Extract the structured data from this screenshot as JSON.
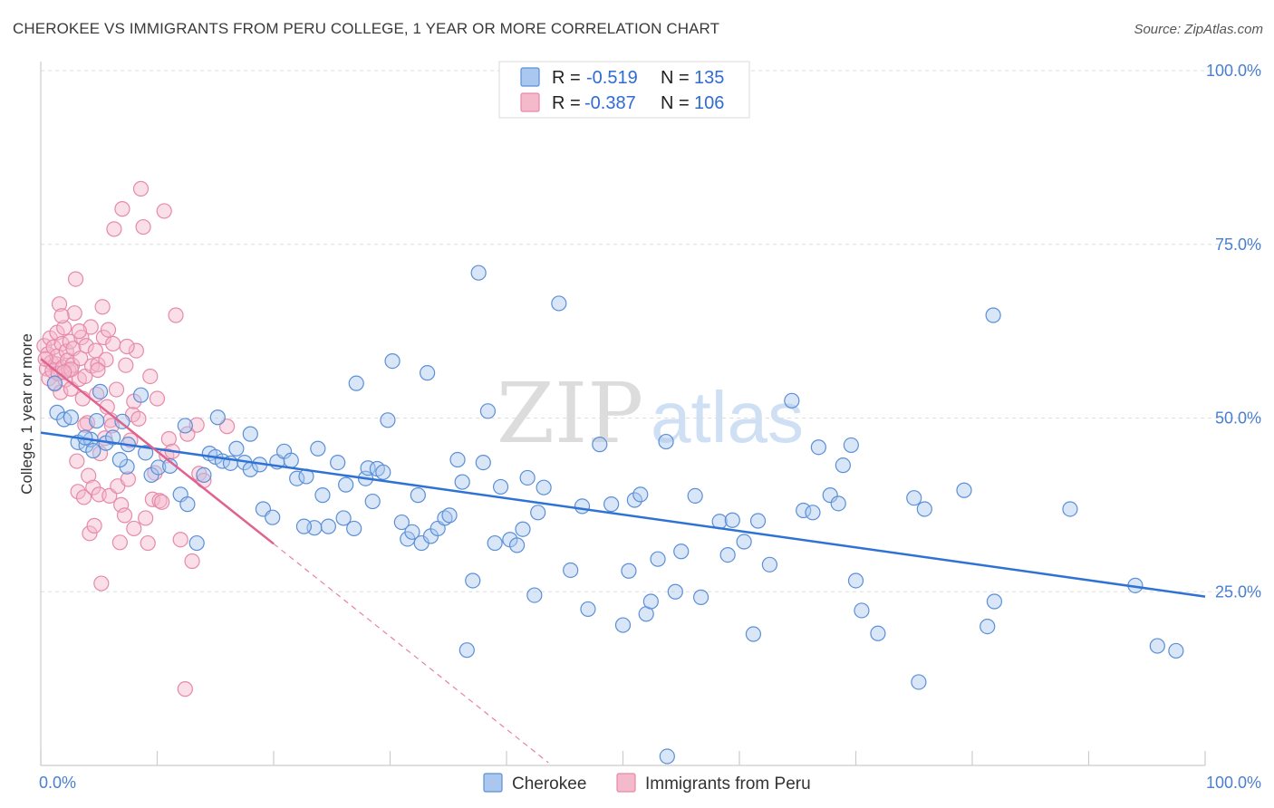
{
  "title": "CHEROKEE VS IMMIGRANTS FROM PERU COLLEGE, 1 YEAR OR MORE CORRELATION CHART",
  "source": "Source: ZipAtlas.com",
  "watermark": {
    "zip": "ZIP",
    "atlas": "atlas"
  },
  "colors": {
    "blue_fill": "#a9c7ef",
    "blue_stroke": "#5b8fd6",
    "blue_line": "#2f72d6",
    "pink_fill": "#f5b9cc",
    "pink_stroke": "#e68aa8",
    "pink_line": "#e0628f",
    "tick_text": "#4a7fd0",
    "grid": "#dddddd"
  },
  "legend": {
    "rows": [
      {
        "r_label": "R =",
        "r_value": "-0.519",
        "n_label": "N =",
        "n_value": "135"
      },
      {
        "r_label": "R =",
        "r_value": "-0.387",
        "n_label": "N =",
        "n_value": "106"
      }
    ]
  },
  "bottom_legend": [
    "Cherokee",
    "Immigrants from Peru"
  ],
  "chart_data": {
    "type": "scatter",
    "xlabel": "",
    "ylabel": "College, 1 year or more",
    "xlim": [
      0,
      100
    ],
    "ylim": [
      0,
      100
    ],
    "x_tick_labels": [
      "0.0%",
      "100.0%"
    ],
    "y_ticks": [
      25,
      50,
      75,
      100
    ],
    "y_tick_labels": [
      "25.0%",
      "50.0%",
      "75.0%",
      "100.0%"
    ],
    "grid": true,
    "legend_position": "top-center",
    "series": [
      {
        "name": "Cherokee",
        "r": -0.519,
        "n": 135,
        "trend": {
          "x": [
            0,
            100
          ],
          "y": [
            47.9,
            24.3
          ]
        },
        "points": [
          [
            1.2,
            55
          ],
          [
            1.4,
            50.8
          ],
          [
            2.0,
            49.8
          ],
          [
            2.6,
            50.1
          ],
          [
            3.2,
            46.5
          ],
          [
            3.9,
            46.1
          ],
          [
            4.3,
            46.9
          ],
          [
            4.8,
            49.6
          ],
          [
            5.1,
            53.8
          ],
          [
            5.6,
            46.4
          ],
          [
            6.2,
            47.2
          ],
          [
            7.0,
            49.5
          ],
          [
            7.5,
            46.2
          ],
          [
            8.6,
            53.3
          ],
          [
            7.4,
            43.0
          ],
          [
            9.5,
            41.8
          ],
          [
            10.1,
            42.9
          ],
          [
            11.1,
            43.1
          ],
          [
            12.0,
            39.0
          ],
          [
            12.6,
            37.6
          ],
          [
            12.4,
            48.9
          ],
          [
            13.4,
            32.0
          ],
          [
            14.0,
            41.8
          ],
          [
            14.5,
            44.9
          ],
          [
            15.0,
            44.4
          ],
          [
            15.2,
            50.1
          ],
          [
            15.6,
            43.8
          ],
          [
            16.3,
            43.5
          ],
          [
            17.5,
            43.6
          ],
          [
            18.0,
            47.7
          ],
          [
            18.0,
            42.6
          ],
          [
            18.8,
            43.3
          ],
          [
            19.1,
            36.9
          ],
          [
            19.9,
            35.7
          ],
          [
            20.3,
            43.7
          ],
          [
            20.9,
            45.2
          ],
          [
            21.5,
            43.9
          ],
          [
            22.0,
            41.3
          ],
          [
            22.8,
            41.6
          ],
          [
            23.5,
            34.2
          ],
          [
            23.8,
            45.6
          ],
          [
            24.2,
            38.9
          ],
          [
            24.7,
            34.4
          ],
          [
            25.5,
            43.6
          ],
          [
            26.0,
            35.6
          ],
          [
            26.2,
            40.4
          ],
          [
            26.9,
            34.1
          ],
          [
            27.1,
            55.0
          ],
          [
            27.9,
            41.3
          ],
          [
            28.1,
            42.8
          ],
          [
            28.5,
            38.0
          ],
          [
            28.9,
            42.7
          ],
          [
            29.4,
            42.2
          ],
          [
            29.8,
            49.7
          ],
          [
            30.2,
            58.2
          ],
          [
            31.0,
            35.0
          ],
          [
            31.5,
            32.6
          ],
          [
            31.9,
            33.6
          ],
          [
            32.4,
            38.9
          ],
          [
            32.7,
            32.0
          ],
          [
            33.2,
            56.5
          ],
          [
            33.5,
            33.0
          ],
          [
            34.1,
            34.1
          ],
          [
            34.7,
            35.6
          ],
          [
            35.1,
            36.0
          ],
          [
            35.8,
            44.0
          ],
          [
            36.2,
            40.8
          ],
          [
            36.6,
            16.6
          ],
          [
            37.1,
            26.6
          ],
          [
            37.6,
            70.9
          ],
          [
            38.0,
            43.6
          ],
          [
            38.4,
            51.0
          ],
          [
            39.0,
            32.0
          ],
          [
            39.5,
            40.1
          ],
          [
            40.3,
            32.5
          ],
          [
            40.9,
            31.7
          ],
          [
            41.4,
            34.0
          ],
          [
            41.8,
            41.4
          ],
          [
            42.4,
            24.5
          ],
          [
            42.7,
            36.4
          ],
          [
            43.2,
            40.0
          ],
          [
            44.5,
            66.5
          ],
          [
            45.5,
            28.1
          ],
          [
            46.5,
            37.3
          ],
          [
            47.0,
            22.5
          ],
          [
            48.0,
            46.2
          ],
          [
            49.0,
            37.6
          ],
          [
            50.0,
            20.2
          ],
          [
            50.5,
            28.0
          ],
          [
            51.0,
            38.2
          ],
          [
            51.5,
            39.0
          ],
          [
            52.0,
            21.8
          ],
          [
            52.4,
            23.6
          ],
          [
            53.0,
            29.7
          ],
          [
            53.7,
            46.6
          ],
          [
            53.8,
            1.3
          ],
          [
            54.5,
            25.0
          ],
          [
            55.0,
            30.8
          ],
          [
            56.2,
            38.8
          ],
          [
            56.7,
            24.2
          ],
          [
            58.3,
            35.1
          ],
          [
            59.0,
            30.3
          ],
          [
            59.4,
            35.3
          ],
          [
            60.4,
            32.2
          ],
          [
            61.2,
            18.9
          ],
          [
            61.6,
            35.2
          ],
          [
            62.6,
            28.9
          ],
          [
            64.5,
            52.5
          ],
          [
            65.5,
            36.7
          ],
          [
            66.3,
            36.4
          ],
          [
            66.8,
            45.8
          ],
          [
            67.8,
            38.9
          ],
          [
            68.5,
            37.7
          ],
          [
            68.9,
            43.2
          ],
          [
            69.6,
            46.1
          ],
          [
            70.0,
            26.6
          ],
          [
            70.5,
            22.3
          ],
          [
            71.9,
            19.0
          ],
          [
            75.0,
            38.5
          ],
          [
            75.4,
            12.0
          ],
          [
            75.9,
            36.9
          ],
          [
            79.3,
            39.6
          ],
          [
            81.3,
            20.0
          ],
          [
            81.9,
            23.6
          ],
          [
            81.8,
            64.8
          ],
          [
            88.4,
            36.9
          ],
          [
            94.0,
            25.9
          ],
          [
            95.9,
            17.2
          ],
          [
            97.5,
            16.5
          ],
          [
            3.8,
            47.2
          ],
          [
            4.5,
            45.3
          ],
          [
            6.8,
            44.0
          ],
          [
            9.0,
            45.0
          ],
          [
            16.8,
            45.6
          ],
          [
            22.6,
            34.4
          ]
        ]
      },
      {
        "name": "Immigrants from Peru",
        "r": -0.387,
        "n": 106,
        "trend": {
          "x": [
            0,
            20
          ],
          "y": [
            58.5,
            31.9
          ]
        },
        "trend_extended": {
          "x": [
            20,
            43.6
          ],
          "y": [
            31.9,
            0.4
          ]
        },
        "points": [
          [
            0.3,
            60.4
          ],
          [
            0.5,
            57.1
          ],
          [
            0.6,
            59.2
          ],
          [
            0.7,
            55.7
          ],
          [
            0.8,
            61.5
          ],
          [
            0.9,
            58.0
          ],
          [
            1.0,
            56.8
          ],
          [
            1.1,
            60.2
          ],
          [
            1.2,
            54.9
          ],
          [
            1.3,
            57.8
          ],
          [
            1.4,
            62.3
          ],
          [
            1.4,
            58.9
          ],
          [
            1.5,
            56.4
          ],
          [
            1.6,
            66.4
          ],
          [
            1.7,
            53.7
          ],
          [
            1.8,
            60.7
          ],
          [
            1.9,
            57.3
          ],
          [
            2.0,
            63.0
          ],
          [
            2.1,
            55.5
          ],
          [
            2.2,
            59.6
          ],
          [
            2.3,
            58.3
          ],
          [
            2.4,
            56.9
          ],
          [
            2.5,
            61.0
          ],
          [
            2.6,
            54.2
          ],
          [
            2.7,
            57.6
          ],
          [
            2.8,
            60.0
          ],
          [
            2.9,
            65.1
          ],
          [
            3.0,
            70.0
          ],
          [
            3.1,
            43.8
          ],
          [
            3.2,
            39.4
          ],
          [
            3.3,
            55.6
          ],
          [
            3.4,
            58.6
          ],
          [
            3.5,
            61.6
          ],
          [
            3.6,
            52.8
          ],
          [
            3.7,
            38.6
          ],
          [
            3.8,
            56.0
          ],
          [
            3.9,
            60.4
          ],
          [
            4.0,
            49.3
          ],
          [
            4.1,
            41.7
          ],
          [
            4.2,
            33.4
          ],
          [
            4.3,
            63.1
          ],
          [
            4.4,
            57.5
          ],
          [
            4.5,
            40.0
          ],
          [
            4.6,
            34.5
          ],
          [
            4.7,
            59.7
          ],
          [
            4.8,
            53.4
          ],
          [
            4.9,
            57.7
          ],
          [
            5.0,
            39.0
          ],
          [
            5.1,
            44.9
          ],
          [
            5.2,
            26.2
          ],
          [
            5.3,
            66.0
          ],
          [
            5.4,
            61.6
          ],
          [
            5.5,
            47.1
          ],
          [
            5.6,
            58.4
          ],
          [
            5.7,
            51.6
          ],
          [
            5.8,
            62.7
          ],
          [
            5.9,
            38.8
          ],
          [
            6.0,
            49.7
          ],
          [
            6.2,
            60.7
          ],
          [
            6.3,
            77.2
          ],
          [
            6.5,
            54.1
          ],
          [
            6.6,
            40.2
          ],
          [
            6.8,
            32.1
          ],
          [
            6.9,
            37.5
          ],
          [
            7.0,
            80.1
          ],
          [
            7.2,
            36.0
          ],
          [
            7.3,
            57.6
          ],
          [
            7.5,
            41.2
          ],
          [
            7.7,
            46.8
          ],
          [
            7.9,
            50.5
          ],
          [
            8.0,
            34.1
          ],
          [
            8.2,
            59.7
          ],
          [
            8.4,
            49.9
          ],
          [
            8.6,
            83.0
          ],
          [
            8.8,
            77.5
          ],
          [
            9.0,
            35.6
          ],
          [
            9.2,
            32.0
          ],
          [
            9.4,
            56.0
          ],
          [
            9.6,
            38.3
          ],
          [
            9.8,
            42.1
          ],
          [
            10.0,
            52.8
          ],
          [
            10.2,
            38.1
          ],
          [
            10.4,
            37.9
          ],
          [
            10.6,
            79.8
          ],
          [
            10.8,
            44.6
          ],
          [
            11.0,
            47.0
          ],
          [
            11.3,
            45.2
          ],
          [
            11.6,
            64.8
          ],
          [
            12.0,
            32.5
          ],
          [
            12.4,
            11.0
          ],
          [
            12.6,
            47.7
          ],
          [
            13.0,
            29.4
          ],
          [
            13.4,
            49.0
          ],
          [
            13.6,
            42.0
          ],
          [
            14.0,
            41.0
          ],
          [
            16.0,
            48.8
          ],
          [
            1.8,
            64.7
          ],
          [
            2.6,
            57.0
          ],
          [
            3.3,
            62.5
          ],
          [
            3.8,
            49.0
          ],
          [
            4.9,
            56.9
          ],
          [
            6.1,
            48.9
          ],
          [
            7.4,
            60.3
          ],
          [
            8.0,
            52.4
          ],
          [
            0.4,
            58.5
          ],
          [
            2.0,
            56.6
          ]
        ]
      }
    ]
  }
}
